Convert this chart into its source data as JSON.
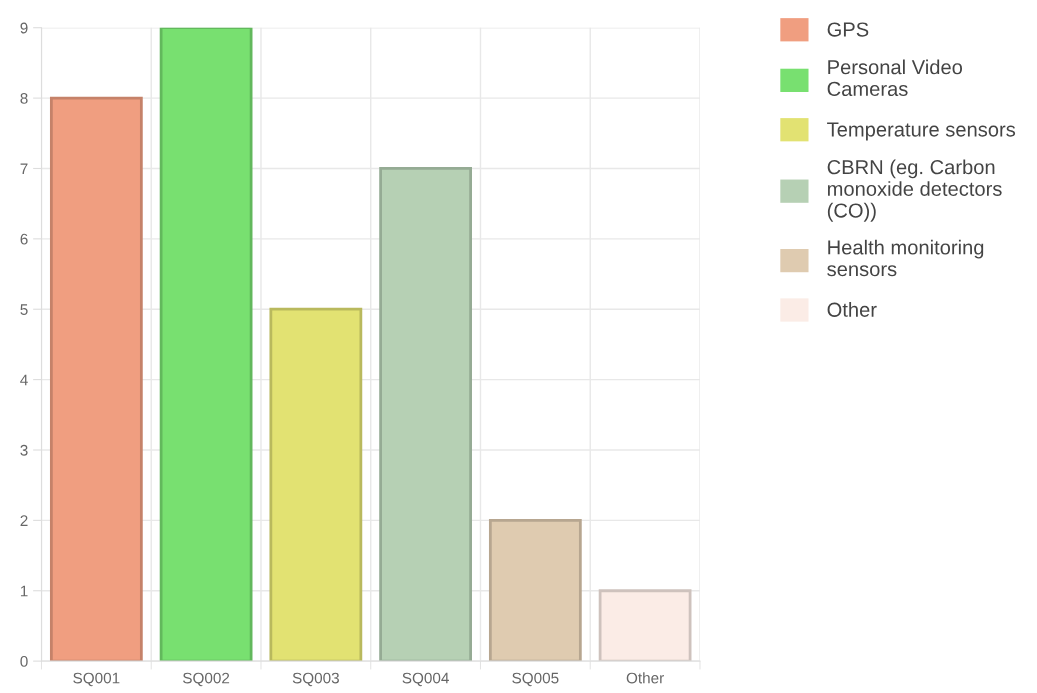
{
  "chart_data": {
    "type": "bar",
    "categories": [
      "SQ001",
      "SQ002",
      "SQ003",
      "SQ004",
      "SQ005",
      "Other"
    ],
    "series": [
      {
        "name": "GPS",
        "color": "#f09e80",
        "values": [
          8,
          null,
          null,
          null,
          null,
          null
        ]
      },
      {
        "name": "Personal Video Cameras",
        "color": "#78e070",
        "values": [
          null,
          9,
          null,
          null,
          null,
          null
        ]
      },
      {
        "name": "Temperature sensors",
        "color": "#e2e272",
        "values": [
          null,
          null,
          5,
          null,
          null,
          null
        ]
      },
      {
        "name": "CBRN (eg. Carbon monoxide detectors (CO))",
        "color": "#b6d0b4",
        "values": [
          null,
          null,
          null,
          7,
          null,
          null
        ]
      },
      {
        "name": "Health monitoring sensors",
        "color": "#dfcbb0",
        "values": [
          null,
          null,
          null,
          null,
          2,
          null
        ]
      },
      {
        "name": "Other",
        "color": "#fbece6",
        "values": [
          null,
          null,
          null,
          null,
          null,
          1
        ]
      }
    ],
    "ylim": [
      0,
      9
    ],
    "yticks": [
      0,
      1,
      2,
      3,
      4,
      5,
      6,
      7,
      8,
      9
    ],
    "grid": true,
    "legend": "top right"
  }
}
